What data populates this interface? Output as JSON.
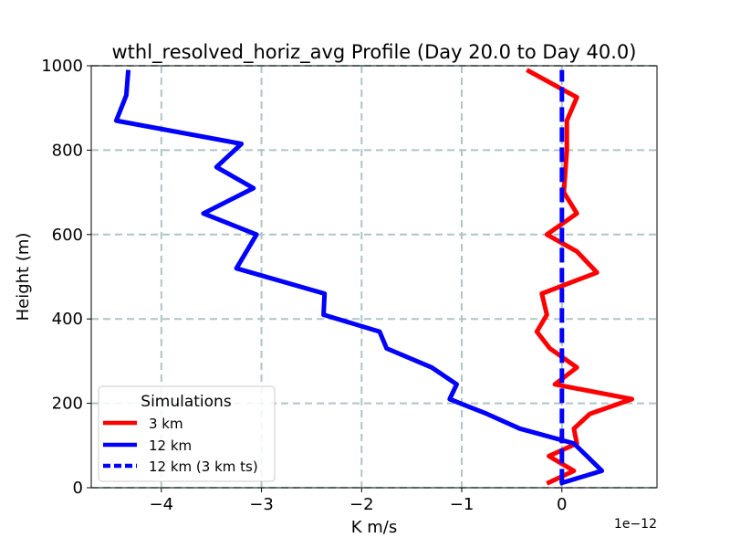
{
  "chart_data": {
    "type": "line",
    "title": "wthl_resolved_horiz_avg Profile (Day 20.0 to Day 40.0)",
    "xlabel": "K m/s",
    "ylabel": "Height (m)",
    "x_scale_note": "1e−12",
    "xlim": [
      -4.7,
      0.95
    ],
    "ylim": [
      0,
      1000
    ],
    "grid": true,
    "x_ticks": [
      -4,
      -3,
      -2,
      -1,
      0
    ],
    "x_tick_labels": [
      "−4",
      "−3",
      "−2",
      "−1",
      "0"
    ],
    "y_ticks": [
      0,
      200,
      400,
      600,
      800,
      1000
    ],
    "y_tick_labels": [
      "0",
      "200",
      "400",
      "600",
      "800",
      "1000"
    ],
    "legend": {
      "title": "Simulations",
      "position": "lower-left",
      "entries": [
        "3 km",
        "12 km",
        "12 km (3 km ts)"
      ]
    },
    "series": [
      {
        "name": "3 km",
        "color": "#ff0000",
        "dash": "solid",
        "x": [
          -0.15,
          0.12,
          -0.13,
          0.15,
          0.12,
          0.28,
          0.7,
          -0.07,
          0.15,
          -0.12,
          -0.25,
          -0.15,
          -0.2,
          0.35,
          0.15,
          -0.15,
          0.15,
          0.02,
          0.05,
          0.05,
          0.15,
          -0.35
        ],
        "y": [
          10,
          40,
          75,
          105,
          140,
          175,
          210,
          245,
          285,
          330,
          370,
          410,
          460,
          510,
          560,
          600,
          650,
          700,
          800,
          870,
          925,
          990
        ]
      },
      {
        "name": "12 km",
        "color": "#0000ff",
        "dash": "solid",
        "x": [
          -0.02,
          0.4,
          0.25,
          0.12,
          -0.42,
          -0.75,
          -1.12,
          -1.05,
          -1.3,
          -1.75,
          -1.82,
          -2.38,
          -2.37,
          -3.25,
          -3.05,
          -3.58,
          -3.08,
          -3.45,
          -3.2,
          -4.45,
          -4.35,
          -4.33
        ],
        "y": [
          10,
          40,
          75,
          105,
          140,
          175,
          210,
          245,
          285,
          330,
          370,
          410,
          460,
          520,
          600,
          650,
          710,
          760,
          815,
          870,
          930,
          990
        ]
      },
      {
        "name": "12 km (3 km ts)",
        "color": "#0000ff",
        "dash": "dashed",
        "x": [
          0,
          0
        ],
        "y": [
          10,
          990
        ]
      }
    ]
  }
}
